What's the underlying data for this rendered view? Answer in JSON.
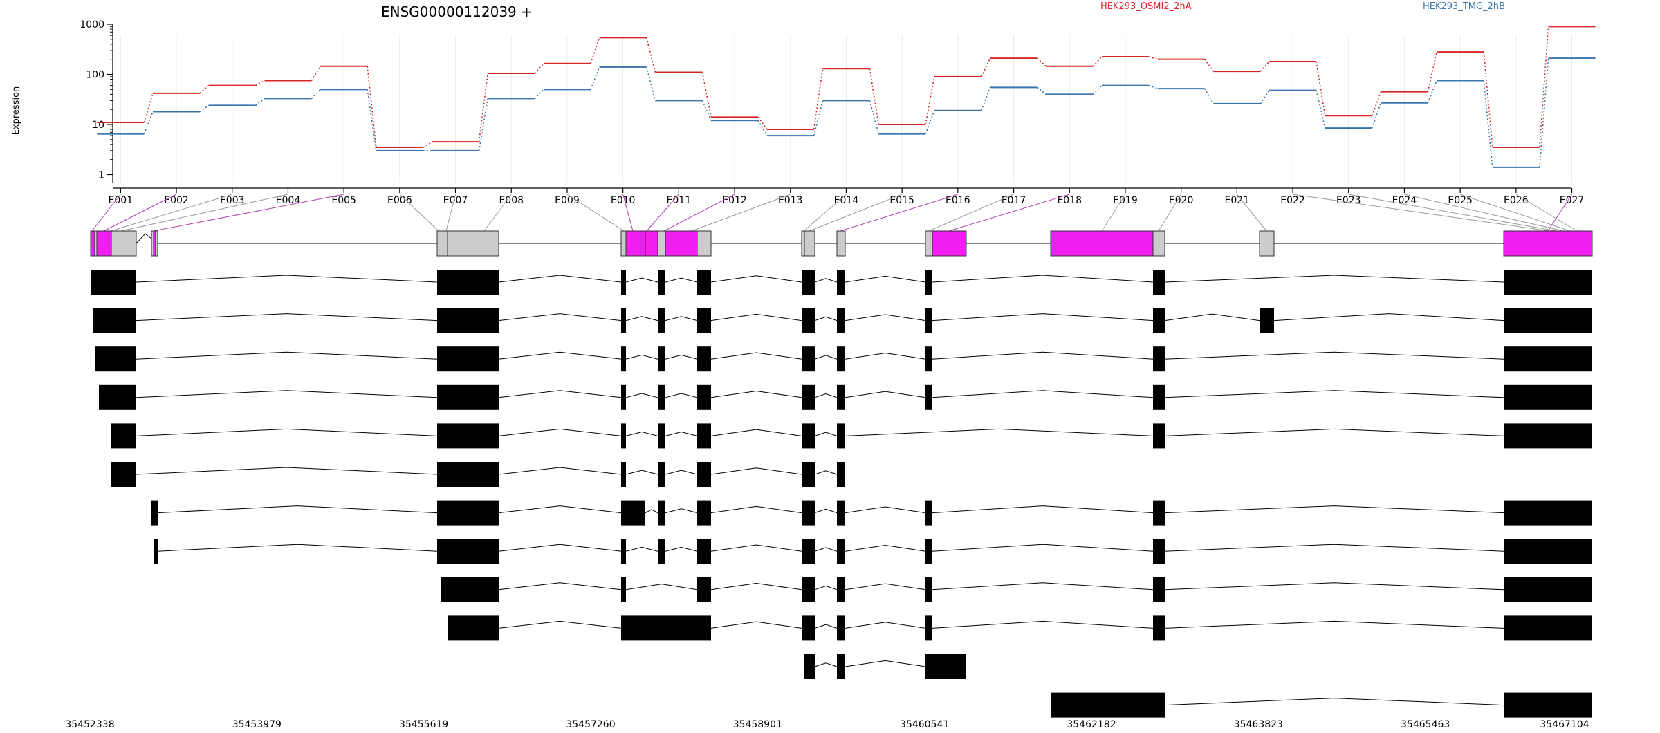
{
  "title": "ENSG00000112039 +",
  "legend": [
    {
      "name": "HEK293_OSMI2_2hA",
      "color": "#d62728"
    },
    {
      "name": "HEK293_TMG_2hB",
      "color": "#3b75af"
    }
  ],
  "colors": {
    "significant_exon": "#f01ef0",
    "exon": "#cccccc",
    "transcript_exon": "#000000"
  },
  "chart_data": {
    "type": "line",
    "title": "ENSG00000112039 +",
    "ylabel": "Expression",
    "yscale": "log",
    "ylim": [
      0.5,
      1000
    ],
    "yticks": [
      1,
      10,
      100,
      1000
    ],
    "ytick_labels": [
      "1",
      "10",
      "100",
      "1000"
    ],
    "categories": [
      "E001",
      "E002",
      "E003",
      "E004",
      "E005",
      "E006",
      "E007",
      "E008",
      "E009",
      "E010",
      "E011",
      "E012",
      "E013",
      "E014",
      "E015",
      "E016",
      "E017",
      "E018",
      "E019",
      "E020",
      "E021",
      "E022",
      "E023",
      "E024",
      "E025",
      "E026",
      "E027"
    ],
    "series": [
      {
        "name": "HEK293_OSMI2_2hA",
        "color": "#d62728",
        "values": [
          11,
          42,
          60,
          75,
          145,
          3.5,
          4.5,
          105,
          165,
          540,
          110,
          14,
          8,
          130,
          10,
          90,
          210,
          145,
          225,
          200,
          115,
          180,
          15,
          45,
          280,
          3.5,
          900
        ]
      },
      {
        "name": "HEK293_TMG_2hB",
        "color": "#3b75af",
        "values": [
          6.5,
          18,
          24,
          33,
          50,
          3,
          3,
          33,
          50,
          140,
          30,
          12,
          6,
          30,
          6.5,
          19,
          55,
          40,
          60,
          52,
          26,
          48,
          8.5,
          27,
          75,
          1.4,
          210
        ]
      }
    ],
    "genomic_axis": {
      "start": 35452338,
      "end": 35467104,
      "tick_labels": [
        "35452338",
        "35453979",
        "35455619",
        "35457260",
        "35458901",
        "35460541",
        "35462182",
        "35463823",
        "35465463",
        "35467104"
      ]
    }
  }
}
